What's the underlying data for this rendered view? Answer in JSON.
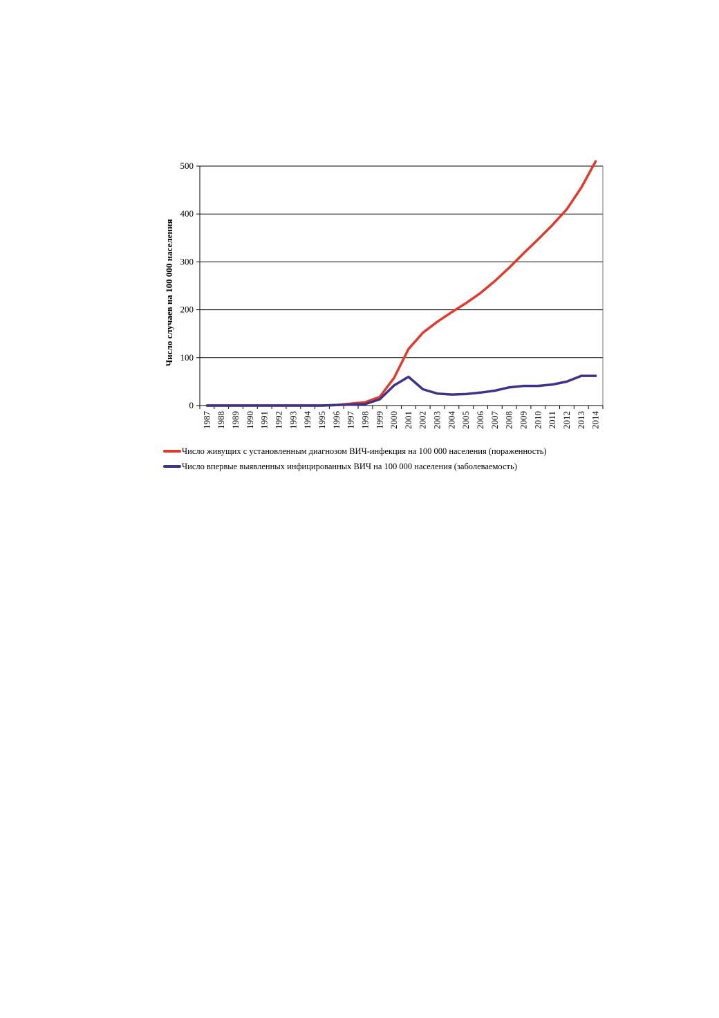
{
  "chart_data": {
    "type": "line",
    "title": "",
    "xlabel": "",
    "ylabel": "Число случаев на 100 000 населения",
    "ylim": [
      0,
      500
    ],
    "yticks": [
      0,
      100,
      200,
      300,
      400,
      500
    ],
    "grid": "horizontal",
    "legend_position": "bottom",
    "x": [
      "1987",
      "1988",
      "1989",
      "1990",
      "1991",
      "1992",
      "1993",
      "1994",
      "1995",
      "1996",
      "1997",
      "1998",
      "1999",
      "2000",
      "2001",
      "2002",
      "2003",
      "2004",
      "2005",
      "2006",
      "2007",
      "2008",
      "2009",
      "2010",
      "2011",
      "2012",
      "2013",
      "2014"
    ],
    "series": [
      {
        "name": "Число живущих с установленным диагнозом ВИЧ-инфекция на 100 000 населения (пораженность)",
        "color": "#e03a2c",
        "values": [
          0,
          0,
          0,
          0,
          0,
          0,
          0,
          0,
          0,
          1,
          4,
          7,
          18,
          58,
          118,
          152,
          175,
          195,
          214,
          235,
          260,
          288,
          318,
          347,
          377,
          410,
          455,
          510
        ]
      },
      {
        "name": "Число впервые выявленных инфицированных ВИЧ на 100 000 населения (заболеваемость)",
        "color": "#3d3388",
        "values": [
          0,
          0,
          0,
          0,
          0,
          0,
          0,
          0,
          0,
          1,
          2,
          3,
          13,
          42,
          60,
          34,
          25,
          23,
          24,
          27,
          31,
          38,
          41,
          41,
          44,
          50,
          62,
          62
        ]
      }
    ]
  }
}
